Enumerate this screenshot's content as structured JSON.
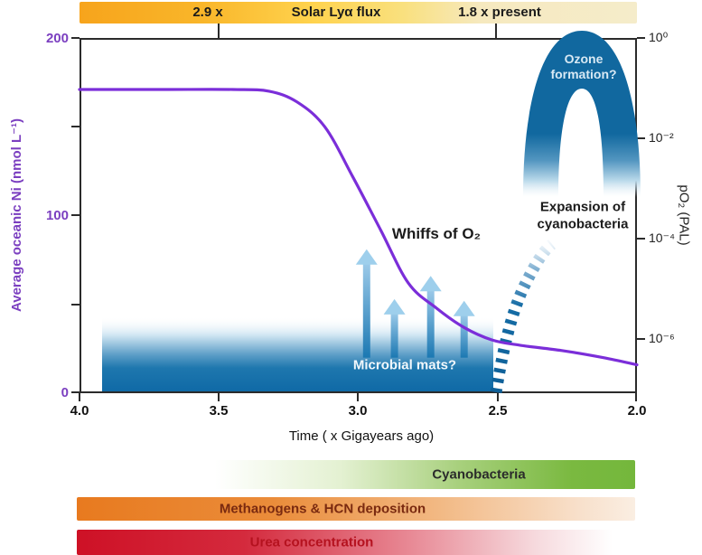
{
  "figure": {
    "top_bar": {
      "label_left": "2.9 x",
      "label_center": "Solar Lyα flux",
      "label_right": "1.8 x present",
      "color_left": "#f7a41c",
      "color_right": "#f5ecca"
    },
    "annotations": {
      "whiffs": "Whiffs of O₂",
      "ozone_line1": "Ozone",
      "ozone_line2": "formation?",
      "expansion": "Expansion of cyanobacteria",
      "microbial_mats": "Microbial mats?"
    },
    "bottom_bars": [
      {
        "label": "Cyanobacteria",
        "color": "#74b73c"
      },
      {
        "label": "Methanogens & HCN deposition",
        "color": "#e87a1f"
      },
      {
        "label": "Urea concentration",
        "color": "#ce1126"
      }
    ]
  },
  "chart_data": {
    "type": "line",
    "title": "",
    "xlabel": "Time ( x Gigayears ago)",
    "x_ticks": [
      "4.0",
      "3.5",
      "3.0",
      "2.5",
      "2.0"
    ],
    "x_range": [
      4.0,
      2.0
    ],
    "y_left_label": "Average oceanic Ni (nmol L⁻¹)",
    "y_left_ticks": [
      "200",
      "100",
      "0"
    ],
    "y_left_range": [
      0,
      200
    ],
    "y_left_color": "#7b3fc0",
    "y_right_label": "pO₂ (PAL)",
    "y_right_ticks": [
      "10⁰",
      "10⁻²",
      "10⁻⁴",
      "10⁻⁶"
    ],
    "grid": false,
    "legend": "none",
    "series": [
      {
        "name": "Average oceanic Ni",
        "color": "#7b2ed9",
        "points_time_ga_vs_nmol": [
          [
            4.0,
            171
          ],
          [
            3.7,
            171
          ],
          [
            3.45,
            171
          ],
          [
            3.32,
            170
          ],
          [
            3.22,
            164
          ],
          [
            3.12,
            150
          ],
          [
            3.02,
            122
          ],
          [
            2.92,
            92
          ],
          [
            2.82,
            62
          ],
          [
            2.72,
            48
          ],
          [
            2.62,
            37
          ],
          [
            2.52,
            30
          ],
          [
            2.42,
            27
          ],
          [
            2.27,
            24
          ],
          [
            2.12,
            20
          ],
          [
            2.0,
            16
          ]
        ]
      }
    ],
    "whiff_arrows": [
      {
        "time_ga": 2.97,
        "tip_nmol_equiv": 81
      },
      {
        "time_ga": 2.87,
        "tip_nmol_equiv": 53
      },
      {
        "time_ga": 2.74,
        "tip_nmol_equiv": 66
      },
      {
        "time_ga": 2.62,
        "tip_nmol_equiv": 52
      }
    ],
    "whiff_arrow_base_nmol_equiv": 20,
    "events": {
      "microbial_mats_span_ga": [
        3.91,
        2.51
      ],
      "oxygen_rise_ga": 2.5,
      "solar_flux_2p9x_ga": 3.5,
      "solar_flux_1p8x_ga": 2.5
    },
    "colors": {
      "mats_blue": "#0f69a6",
      "arch_blue": "#11689f",
      "curve_purple": "#7b2ed9",
      "axis": "#2b2b2b"
    }
  }
}
